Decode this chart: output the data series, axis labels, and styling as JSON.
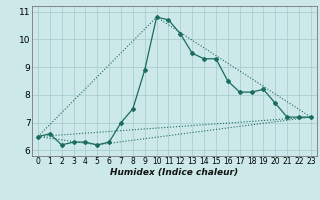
{
  "xlabel": "Humidex (Indice chaleur)",
  "xlim": [
    -0.5,
    23.5
  ],
  "ylim": [
    5.8,
    11.2
  ],
  "yticks": [
    6,
    7,
    8,
    9,
    10,
    11
  ],
  "xticks": [
    0,
    1,
    2,
    3,
    4,
    5,
    6,
    7,
    8,
    9,
    10,
    11,
    12,
    13,
    14,
    15,
    16,
    17,
    18,
    19,
    20,
    21,
    22,
    23
  ],
  "bg_color": "#cce8e8",
  "grid_color": "#aacece",
  "line_color": "#1a6b60",
  "line1_x": [
    0,
    1,
    2,
    3,
    4,
    5,
    6,
    7,
    8,
    9,
    10,
    11,
    12,
    13,
    14,
    15,
    16,
    17,
    18,
    19,
    20,
    21,
    22,
    23
  ],
  "line1_y": [
    6.5,
    6.6,
    6.2,
    6.3,
    6.3,
    6.2,
    6.3,
    7.0,
    7.5,
    8.9,
    10.8,
    10.7,
    10.2,
    9.5,
    9.3,
    9.3,
    8.5,
    8.1,
    8.1,
    8.2,
    7.7,
    7.2,
    7.2,
    7.2
  ],
  "line2_x": [
    0,
    23
  ],
  "line2_y": [
    6.5,
    7.2
  ],
  "line3_x": [
    0,
    10,
    23
  ],
  "line3_y": [
    6.5,
    10.8,
    7.2
  ],
  "line4_x": [
    0,
    5,
    23
  ],
  "line4_y": [
    6.5,
    6.2,
    7.2
  ]
}
